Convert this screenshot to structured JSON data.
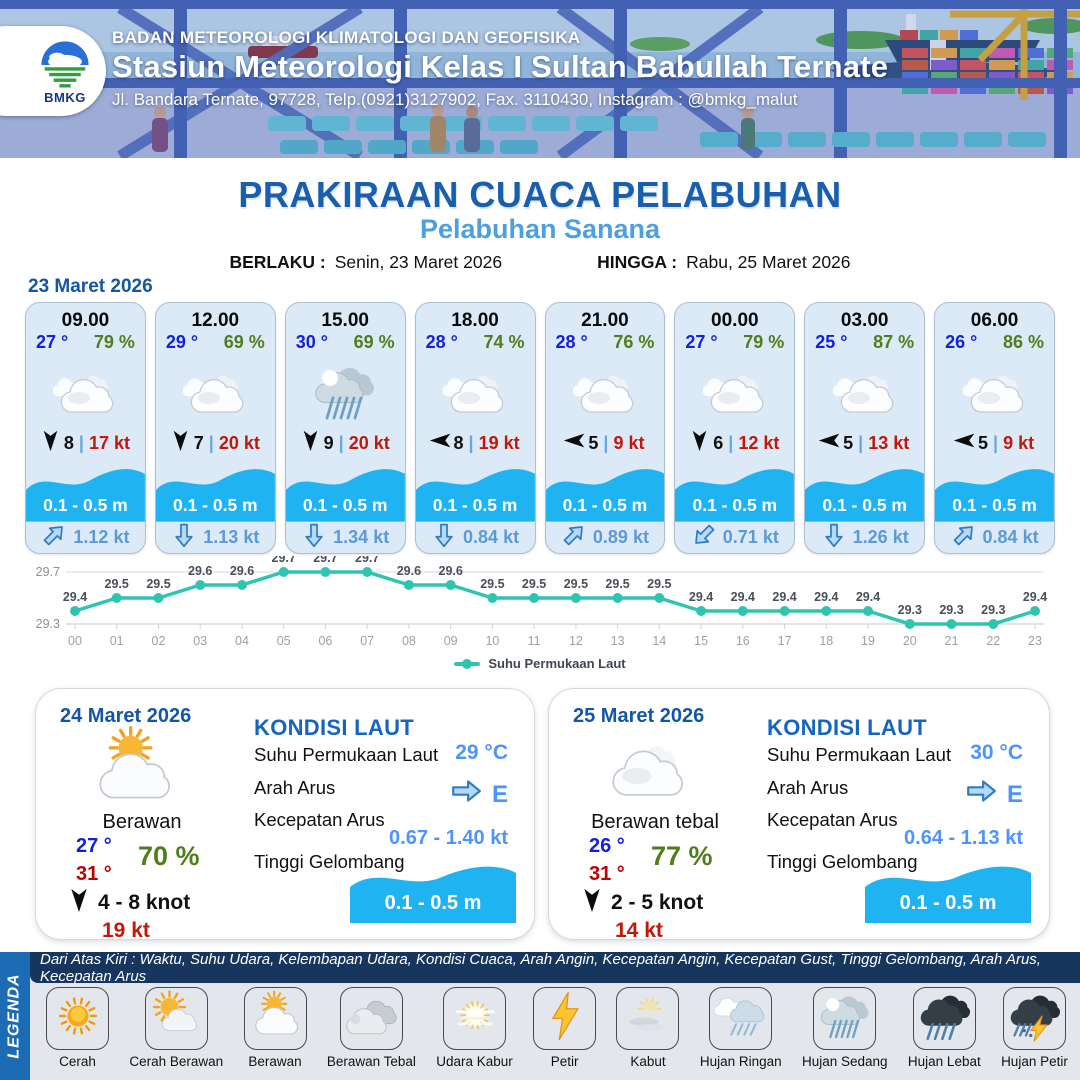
{
  "header": {
    "logo_text": "BMKG",
    "agency": "BADAN METEOROLOGI KLIMATOLOGI DAN GEOFISIKA",
    "station": "Stasiun Meteorologi Kelas I Sultan Babullah Ternate",
    "address": "Jl. Bandara Ternate, 97728, Telp.(0921)3127902, Fax. 3110430, Instagram : @bmkg_malut"
  },
  "title": {
    "main": "PRAKIRAAN CUACA PELABUHAN",
    "subtitle": "Pelabuhan Sanana",
    "valid_from_label": "BERLAKU :",
    "valid_from": "Senin, 23 Maret 2026",
    "valid_to_label": "HINGGA :",
    "valid_to": "Rabu, 25 Maret 2026"
  },
  "hourly": {
    "date": "23 Maret 2026",
    "cards": [
      {
        "time": "09.00",
        "temp": "27 °",
        "rh": "79 %",
        "icon": "cloud",
        "wind_dir_deg": 0,
        "wind_avg": "8",
        "wind_gust": "17 kt",
        "wave": "0.1 - 0.5 m",
        "current_dir_deg": -45,
        "current": "1.12 kt"
      },
      {
        "time": "12.00",
        "temp": "29 °",
        "rh": "69 %",
        "icon": "cloud",
        "wind_dir_deg": 0,
        "wind_avg": "7",
        "wind_gust": "20 kt",
        "wave": "0.1 - 0.5 m",
        "current_dir_deg": 90,
        "current": "1.13 kt"
      },
      {
        "time": "15.00",
        "temp": "30 °",
        "rh": "69 %",
        "icon": "rain-mod",
        "wind_dir_deg": 0,
        "wind_avg": "9",
        "wind_gust": "20 kt",
        "wave": "0.1 - 0.5 m",
        "current_dir_deg": 90,
        "current": "1.34 kt"
      },
      {
        "time": "18.00",
        "temp": "28 °",
        "rh": "74 %",
        "icon": "cloud",
        "wind_dir_deg": 90,
        "wind_avg": "8",
        "wind_gust": "19 kt",
        "wave": "0.1 - 0.5 m",
        "current_dir_deg": 90,
        "current": "0.84 kt"
      },
      {
        "time": "21.00",
        "temp": "28 °",
        "rh": "76 %",
        "icon": "cloud",
        "wind_dir_deg": 90,
        "wind_avg": "5",
        "wind_gust": "9 kt",
        "wave": "0.1 - 0.5 m",
        "current_dir_deg": -45,
        "current": "0.89 kt"
      },
      {
        "time": "00.00",
        "temp": "27 °",
        "rh": "79 %",
        "icon": "cloud",
        "wind_dir_deg": 0,
        "wind_avg": "6",
        "wind_gust": "12 kt",
        "wave": "0.1 - 0.5 m",
        "current_dir_deg": 135,
        "current": "0.71 kt"
      },
      {
        "time": "03.00",
        "temp": "25 °",
        "rh": "87 %",
        "icon": "cloud",
        "wind_dir_deg": 90,
        "wind_avg": "5",
        "wind_gust": "13 kt",
        "wave": "0.1 - 0.5 m",
        "current_dir_deg": 90,
        "current": "1.26 kt"
      },
      {
        "time": "06.00",
        "temp": "26 °",
        "rh": "86 %",
        "icon": "cloud",
        "wind_dir_deg": 90,
        "wind_avg": "5",
        "wind_gust": "9 kt",
        "wave": "0.1 - 0.5 m",
        "current_dir_deg": -45,
        "current": "0.84 kt"
      }
    ]
  },
  "chart_data": {
    "type": "line",
    "title": "",
    "xlabel": "",
    "ylabel": "",
    "x": [
      "00",
      "01",
      "02",
      "03",
      "04",
      "05",
      "06",
      "07",
      "08",
      "09",
      "10",
      "11",
      "12",
      "13",
      "14",
      "15",
      "16",
      "17",
      "18",
      "19",
      "20",
      "21",
      "22",
      "23"
    ],
    "series": [
      {
        "name": "Suhu Permukaan Laut",
        "values": [
          29.4,
          29.5,
          29.5,
          29.6,
          29.6,
          29.7,
          29.7,
          29.7,
          29.6,
          29.6,
          29.5,
          29.5,
          29.5,
          29.5,
          29.5,
          29.4,
          29.4,
          29.4,
          29.4,
          29.4,
          29.3,
          29.3,
          29.3,
          29.4
        ]
      }
    ],
    "ylim": [
      29.3,
      29.7
    ],
    "yticks": [
      "29.3",
      "29.7"
    ],
    "grid": true,
    "legend_position": "bottom",
    "line_color": "#2ec5b0"
  },
  "daily": [
    {
      "date": "24 Maret 2026",
      "icon": "cloud-sun",
      "condition": "Berawan",
      "temp_min": "27 °",
      "temp_max": "31 °",
      "rh": "70 %",
      "wind_dir_deg": 0,
      "wind_range": "4  - 8 knot",
      "gust": "19 kt",
      "sea": {
        "title": "KONDISI LAUT",
        "sst_label": "Suhu Permukaan Laut",
        "sst": "29 °C",
        "current_dir_label": "Arah Arus",
        "current_dir": "E",
        "current_dir_deg": 0,
        "current_speed_label": "Kecepatan Arus",
        "current_speed": "0.67  - 1.40 kt",
        "wave_label": "Tinggi Gelombang",
        "wave": "0.1 - 0.5 m"
      }
    },
    {
      "date": "25 Maret 2026",
      "icon": "cloud",
      "condition": "Berawan tebal",
      "temp_min": "26 °",
      "temp_max": "31 °",
      "rh": "77 %",
      "wind_dir_deg": 0,
      "wind_range": "2  - 5 knot",
      "gust": "14 kt",
      "sea": {
        "title": "KONDISI LAUT",
        "sst_label": "Suhu Permukaan Laut",
        "sst": "30 °C",
        "current_dir_label": "Arah Arus",
        "current_dir": "E",
        "current_dir_deg": 0,
        "current_speed_label": "Kecepatan Arus",
        "current_speed": "0.64  - 1.13 kt",
        "wave_label": "Tinggi Gelombang",
        "wave": "0.1 - 0.5 m"
      }
    }
  ],
  "legend": {
    "strip": "LEGENDA",
    "info": "Dari Atas Kiri : Waktu, Suhu Udara, Kelembapan Udara, Kondisi Cuaca, Arah Angin, Kecepatan Angin, Kecepatan Gust, Tinggi Gelombang, Arah Arus, Kecepatan Arus",
    "items": [
      {
        "label": "Cerah",
        "icon": "sun"
      },
      {
        "label": "Cerah Berawan",
        "icon": "sun-cloud"
      },
      {
        "label": "Berawan",
        "icon": "cloud-sun"
      },
      {
        "label": "Berawan Tebal",
        "icon": "clouds"
      },
      {
        "label": "Udara Kabur",
        "icon": "haze-sun"
      },
      {
        "label": "Petir",
        "icon": "bolt"
      },
      {
        "label": "Kabut",
        "icon": "fog"
      },
      {
        "label": "Hujan Ringan",
        "icon": "rain-light"
      },
      {
        "label": "Hujan Sedang",
        "icon": "rain-mod"
      },
      {
        "label": "Hujan Lebat",
        "icon": "rain-heavy"
      },
      {
        "label": "Hujan Petir",
        "icon": "rain-thunder"
      }
    ]
  },
  "colors": {
    "title_blue": "#1a5fae",
    "subtitle_blue": "#4da0e0",
    "date_blue": "#1356a8",
    "temp_blue": "#1122dd",
    "rh_green": "#4e7e1e",
    "gust_red": "#c21807",
    "max_red": "#c00000",
    "wave_cyan": "#1fb4f1",
    "current_text_blue": "#5b9bd5",
    "chart_teal": "#2ec5b0",
    "kondisi_title_blue": "#1565c0",
    "sea_value_blue": "#4d94ff",
    "legend_bar_navy": "#17365e",
    "legenda_strip_blue": "#1c6bb5"
  }
}
